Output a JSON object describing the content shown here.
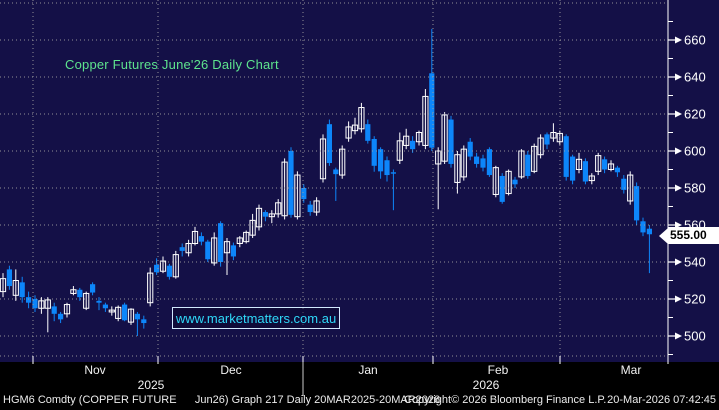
{
  "title": {
    "text": "Copper Futures June'26 Daily Chart"
  },
  "watermark": {
    "text": "www.marketmatters.com.au"
  },
  "price_marker": {
    "text": "555.00"
  },
  "footer": {
    "left": "HGM6 Comdty (COPPER FUTURE      Jun26) Graph 217 Daily 20MAR2025-20MAR2026",
    "copyright": "Copyright© 2026 Bloomberg Finance L.P.",
    "timestamp": "20-Mar-2026 07:42:45"
  },
  "colors": {
    "background": "#141047",
    "footer_background": "#000000",
    "up_candle": "#ffffff",
    "down_candle": "#0d86fa",
    "grid": "#a0a0a0",
    "axis": "#ffffff",
    "title_text": "#5ee48e",
    "watermark_text": "#2fd8f8",
    "marker_background": "#ffffff",
    "marker_text": "#000000"
  },
  "chart_data": {
    "type": "candlestick",
    "title": "Copper Futures June'26 Daily Chart",
    "security": "HGM6 Comdty (COPPER FUTURE Jun26)",
    "period": "Daily",
    "date_range_label": "20MAR2025-20MAR2026",
    "last_price": 555.0,
    "ylim": [
      486,
      682
    ],
    "y_ticks": [
      660,
      640,
      620,
      600,
      580,
      560,
      540,
      520,
      500
    ],
    "y_minor_ticks": [
      670,
      650,
      630,
      610,
      590,
      570,
      550,
      530,
      510,
      490
    ],
    "y_gridlines": [
      680,
      660,
      640,
      620,
      600,
      580,
      560,
      540,
      520,
      500
    ],
    "month_labels": [
      "Nov",
      "Dec",
      "Jan",
      "Feb",
      "Mar"
    ],
    "year_labels": [
      "2025",
      "2026"
    ],
    "candles_format": [
      "open",
      "high",
      "low",
      "close"
    ],
    "candles": [
      [
        524,
        534,
        521,
        531
      ],
      [
        536,
        538,
        525,
        527
      ],
      [
        522,
        536,
        519,
        530
      ],
      [
        529,
        532,
        518,
        521
      ],
      [
        521,
        524,
        515,
        518
      ],
      [
        520,
        522,
        513,
        515
      ],
      [
        515,
        521,
        512,
        519
      ],
      [
        515,
        521,
        502,
        519.5
      ],
      [
        516,
        518,
        508,
        512
      ],
      [
        512,
        513,
        507,
        509
      ],
      [
        512,
        518,
        510,
        517
      ],
      [
        523,
        527,
        522,
        525
      ],
      [
        525,
        526,
        519,
        521
      ],
      [
        515,
        524,
        514,
        523
      ],
      [
        528,
        529,
        522,
        523.5
      ],
      [
        519,
        521,
        514,
        518
      ],
      [
        517,
        518,
        513,
        515
      ],
      [
        513,
        516,
        511,
        514
      ],
      [
        509.5,
        516.5,
        508,
        515.5
      ],
      [
        517,
        518,
        508,
        508.5
      ],
      [
        507.5,
        515,
        506,
        514.5
      ],
      [
        512,
        513,
        500,
        509
      ],
      [
        509,
        511,
        504,
        507
      ],
      [
        518,
        537,
        516,
        534
      ],
      [
        538.5,
        542,
        533,
        534.5
      ],
      [
        535,
        543,
        534,
        540.5
      ],
      [
        538,
        539,
        530.5,
        532
      ],
      [
        532,
        546,
        531,
        544
      ],
      [
        548,
        550,
        543,
        546
      ],
      [
        545,
        552,
        543,
        550
      ],
      [
        550,
        559,
        549,
        556.5
      ],
      [
        554,
        556,
        549,
        551
      ],
      [
        551,
        552,
        540,
        541.5
      ],
      [
        539.5,
        556,
        538,
        553
      ],
      [
        561,
        562,
        537.5,
        540
      ],
      [
        545,
        553,
        533,
        551
      ],
      [
        549,
        550.5,
        541,
        543
      ],
      [
        550,
        554,
        548,
        553
      ],
      [
        551,
        557,
        550,
        556
      ],
      [
        554.5,
        566,
        553,
        562.5
      ],
      [
        559,
        571,
        557,
        569
      ],
      [
        567,
        568,
        562,
        564.5
      ],
      [
        564.5,
        568,
        561,
        566
      ],
      [
        566,
        574,
        564,
        572
      ],
      [
        565,
        596,
        563,
        594
      ],
      [
        600,
        602,
        564,
        565.5
      ],
      [
        564.5,
        589,
        563,
        587
      ],
      [
        580,
        582,
        572,
        574
      ],
      [
        571,
        573,
        565,
        567
      ],
      [
        567,
        575,
        565,
        573
      ],
      [
        585,
        609,
        583,
        606.5
      ],
      [
        614.5,
        617,
        592,
        593.5
      ],
      [
        590,
        591,
        573,
        587.5
      ],
      [
        587,
        603,
        585,
        601
      ],
      [
        607,
        616,
        605,
        613
      ],
      [
        611,
        618,
        609,
        614
      ],
      [
        612,
        626,
        610,
        623.5
      ],
      [
        614.5,
        617,
        604,
        605.5
      ],
      [
        606.5,
        608,
        588.8,
        592
      ],
      [
        601,
        602,
        585,
        589
      ],
      [
        595,
        597,
        583.5,
        587
      ],
      [
        588.5,
        590,
        568,
        588
      ],
      [
        595,
        610,
        593,
        605.5
      ],
      [
        603,
        612,
        601,
        608
      ],
      [
        605.5,
        608,
        599,
        601
      ],
      [
        605,
        611,
        603,
        610
      ],
      [
        603,
        633.5,
        601,
        629.5
      ],
      [
        642,
        666,
        600,
        601.8
      ],
      [
        593,
        602,
        568.5,
        600
      ],
      [
        594.5,
        621,
        593,
        619.5
      ],
      [
        617,
        619,
        591,
        593
      ],
      [
        583,
        600,
        577,
        598
      ],
      [
        586,
        603,
        584,
        601
      ],
      [
        605,
        607,
        595,
        597
      ],
      [
        597,
        599,
        591,
        593
      ],
      [
        596,
        598,
        589,
        591
      ],
      [
        601,
        602,
        586,
        587
      ],
      [
        576.5,
        592,
        575,
        591
      ],
      [
        586.5,
        588,
        571.5,
        572.5
      ],
      [
        577,
        590,
        576,
        589
      ],
      [
        584.5,
        586,
        580,
        582
      ],
      [
        586,
        601,
        585,
        600
      ],
      [
        598,
        600,
        585,
        586.5
      ],
      [
        589,
        604,
        588,
        602.5
      ],
      [
        598,
        609,
        596,
        607
      ],
      [
        609,
        610,
        601,
        603.5
      ],
      [
        607,
        615,
        605,
        610
      ],
      [
        605,
        611,
        603,
        609.5
      ],
      [
        608,
        609,
        584,
        586
      ],
      [
        597,
        598,
        582,
        584
      ],
      [
        590,
        599,
        588,
        595.5
      ],
      [
        594.5,
        596,
        582,
        583.5
      ],
      [
        584,
        588,
        582,
        586.5
      ],
      [
        589,
        599,
        587,
        597.5
      ],
      [
        595.5,
        597,
        588,
        590
      ],
      [
        590,
        595,
        589,
        593
      ],
      [
        591,
        592,
        586,
        588.5
      ],
      [
        585,
        587,
        577,
        579
      ],
      [
        573,
        589,
        571,
        587
      ],
      [
        581,
        583,
        560,
        562.5
      ],
      [
        562,
        564,
        554,
        556
      ],
      [
        558,
        560,
        534,
        555
      ]
    ]
  }
}
